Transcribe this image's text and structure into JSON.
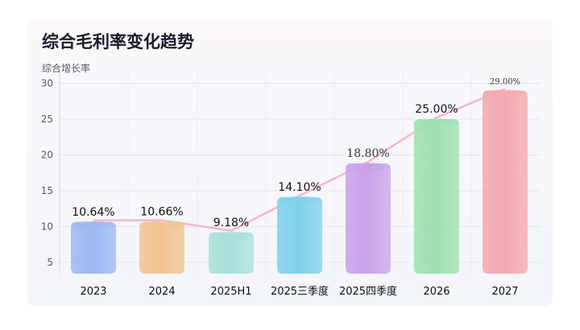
{
  "chart_data": {
    "type": "bar",
    "title": "综合毛利率变化趋势",
    "ylabel": "综合增长率",
    "categories": [
      "2023",
      "2024",
      "2025H1",
      "2025三季度",
      "2025四季度",
      "2026",
      "2027"
    ],
    "values": [
      10.64,
      10.66,
      9.18,
      14.1,
      18.8,
      25.0,
      29.0
    ],
    "value_labels": [
      "10.64%",
      "10.66%",
      "9.18%",
      "14.10%",
      "18.80%",
      "25.00%",
      "29.00%"
    ],
    "yticks": [
      5,
      10,
      15,
      20,
      25,
      30
    ],
    "ylim": [
      3,
      30
    ],
    "grid": true,
    "colors": [
      "#9db8f2",
      "#f2c38f",
      "#a9e0da",
      "#7fd1ec",
      "#c9a2ea",
      "#9ee0b0",
      "#f2a9ae"
    ],
    "trend_line": true
  }
}
